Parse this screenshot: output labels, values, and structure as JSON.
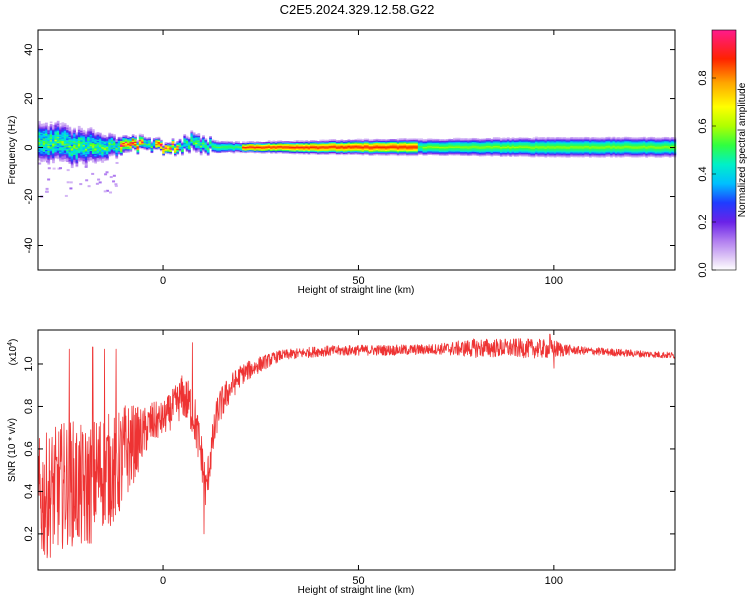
{
  "title": "C2E5.2024.329.12.58.G22",
  "chart_data": [
    {
      "type": "heatmap",
      "xlabel": "Height of straight line (km)",
      "ylabel": "Frequency (Hz)",
      "xlim": [
        -32,
        131
      ],
      "ylim": [
        -50,
        48
      ],
      "xticks": [
        0,
        50,
        100
      ],
      "yticks": [
        -40,
        -20,
        0,
        20,
        40
      ],
      "colorbar": {
        "label": "Normalized spectral amplitude",
        "range": [
          0,
          1
        ],
        "ticks": [
          "0.0",
          "0.2",
          "0.4",
          "0.6",
          "0.8"
        ]
      },
      "band_center_hz": [
        [
          -32,
          2
        ],
        [
          -28,
          2
        ],
        [
          -24,
          0
        ],
        [
          -20,
          1
        ],
        [
          -16,
          0
        ],
        [
          -12,
          0
        ],
        [
          -8,
          1
        ],
        [
          -4,
          1
        ],
        [
          0,
          0
        ],
        [
          4,
          0
        ],
        [
          6,
          2
        ],
        [
          8,
          3
        ],
        [
          10,
          1
        ],
        [
          14,
          0
        ],
        [
          20,
          0
        ],
        [
          30,
          0
        ],
        [
          50,
          0
        ],
        [
          70,
          0
        ],
        [
          90,
          0
        ],
        [
          110,
          0
        ],
        [
          131,
          0
        ]
      ],
      "band_halfwidth_hz": [
        [
          -32,
          6
        ],
        [
          -25,
          6
        ],
        [
          -18,
          5
        ],
        [
          -12,
          3
        ],
        [
          -8,
          2
        ],
        [
          -4,
          2
        ],
        [
          0,
          1.5
        ],
        [
          4,
          2
        ],
        [
          8,
          3
        ],
        [
          12,
          2
        ],
        [
          20,
          1.5
        ],
        [
          40,
          2
        ],
        [
          70,
          2.5
        ],
        [
          100,
          3
        ],
        [
          131,
          3
        ]
      ],
      "peak_amplitude_regions": [
        {
          "x": [
            -11,
            -5
          ],
          "amplitude": 0.95
        },
        {
          "x": [
            -2,
            4
          ],
          "amplitude": 0.95
        },
        {
          "x": [
            20,
            65
          ],
          "amplitude": 0.9
        },
        {
          "x": [
            66,
            131
          ],
          "amplitude": 0.6
        }
      ]
    },
    {
      "type": "line",
      "xlabel": "Height of straight line (km)",
      "ylabel": "SNR (10 * v/v)",
      "yscale_label_base": "(x10",
      "yscale_label_exp": "4",
      "yscale_label_close": ")",
      "xlim": [
        -32,
        131
      ],
      "ylim": [
        0.03,
        1.16
      ],
      "xticks": [
        0,
        50,
        100
      ],
      "yticks": [
        0.2,
        0.4,
        0.6,
        0.8,
        1.0
      ],
      "color": "#ee3333",
      "trend": [
        [
          -32,
          0.35
        ],
        [
          -28,
          0.4
        ],
        [
          -24,
          0.45
        ],
        [
          -20,
          0.4
        ],
        [
          -16,
          0.5
        ],
        [
          -12,
          0.5
        ],
        [
          -9,
          0.6
        ],
        [
          -6,
          0.65
        ],
        [
          -3,
          0.72
        ],
        [
          0,
          0.74
        ],
        [
          3,
          0.8
        ],
        [
          5,
          0.85
        ],
        [
          7,
          0.8
        ],
        [
          8,
          0.75
        ],
        [
          10,
          0.55
        ],
        [
          11,
          0.4
        ],
        [
          12,
          0.55
        ],
        [
          14,
          0.78
        ],
        [
          17,
          0.88
        ],
        [
          20,
          0.95
        ],
        [
          25,
          1.0
        ],
        [
          30,
          1.04
        ],
        [
          40,
          1.06
        ],
        [
          50,
          1.065
        ],
        [
          60,
          1.065
        ],
        [
          70,
          1.07
        ],
        [
          80,
          1.075
        ],
        [
          90,
          1.075
        ],
        [
          100,
          1.07
        ],
        [
          110,
          1.06
        ],
        [
          120,
          1.05
        ],
        [
          131,
          1.04
        ]
      ],
      "noise_amplitude": [
        [
          -32,
          0.3
        ],
        [
          -20,
          0.3
        ],
        [
          -10,
          0.25
        ],
        [
          -5,
          0.12
        ],
        [
          0,
          0.08
        ],
        [
          8,
          0.12
        ],
        [
          12,
          0.1
        ],
        [
          20,
          0.05
        ],
        [
          30,
          0.025
        ],
        [
          70,
          0.025
        ],
        [
          80,
          0.045
        ],
        [
          100,
          0.045
        ],
        [
          105,
          0.02
        ],
        [
          131,
          0.015
        ]
      ],
      "spikes": [
        [
          -24,
          1.07
        ],
        [
          -18,
          1.08
        ],
        [
          -15,
          1.07
        ],
        [
          -12,
          1.07
        ],
        [
          7.5,
          1.1
        ],
        [
          10.5,
          0.2
        ],
        [
          99,
          1.14
        ],
        [
          100,
          0.98
        ]
      ]
    }
  ]
}
